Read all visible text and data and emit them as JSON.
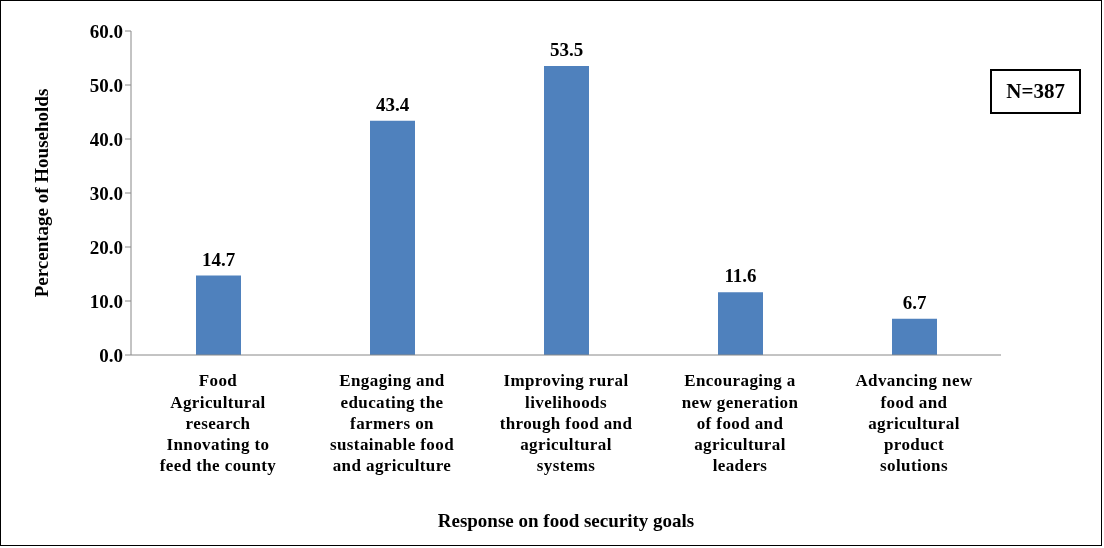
{
  "chart_data": {
    "type": "bar",
    "xlabel": "Response on food security goals",
    "ylabel": "Percentage of Households",
    "categories": [
      "Food Agricultural research Innovating to feed the county",
      "Engaging and educating the farmers on sustainable food and agriculture",
      "Improving rural livelihoods through food and agricultural systems",
      "Encouraging a new generation of food and agricultural leaders",
      "Advancing new food and agricultural product solutions"
    ],
    "values": [
      14.7,
      43.4,
      53.5,
      11.6,
      6.7
    ],
    "color": "#4f81bd",
    "ylim": [
      0,
      60
    ],
    "yticks": [
      {
        "value": 0,
        "label": "0.0"
      },
      {
        "value": 10,
        "label": "10.0"
      },
      {
        "value": 20,
        "label": "20.0"
      },
      {
        "value": 30,
        "label": "30.0"
      },
      {
        "value": 40,
        "label": "40.0"
      },
      {
        "value": 50,
        "label": "50.0"
      },
      {
        "value": 60,
        "label": "60.0"
      }
    ],
    "grid": false,
    "data_labels": true,
    "annotations": [
      "N=387"
    ]
  }
}
